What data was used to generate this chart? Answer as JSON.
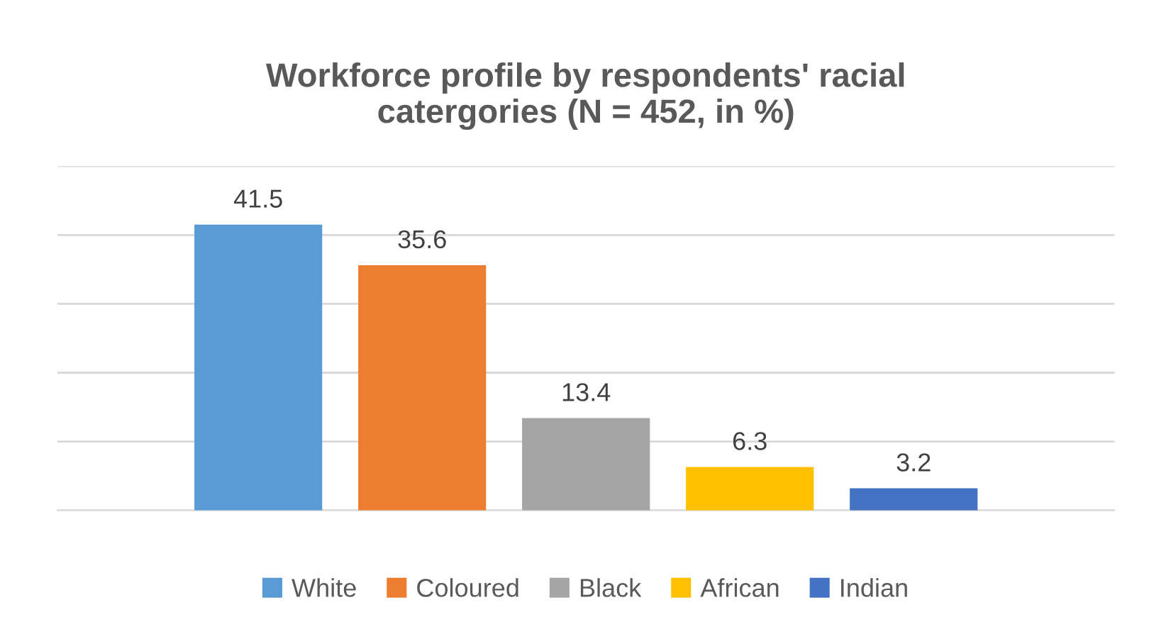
{
  "chart_data": {
    "type": "bar",
    "title": "Workforce profile by respondents' racial\ncatergories (N = 452, in %)",
    "categories": [
      null
    ],
    "series": [
      {
        "name": "White",
        "color": "#5b9bd5",
        "values": [
          41.5
        ]
      },
      {
        "name": "Coloured",
        "color": "#ed7d31",
        "values": [
          35.6
        ]
      },
      {
        "name": "Black",
        "color": "#a5a5a5",
        "values": [
          13.4
        ]
      },
      {
        "name": "African",
        "color": "#ffc000",
        "values": [
          6.3
        ]
      },
      {
        "name": "Indian",
        "color": "#4472c4",
        "values": [
          3.2
        ]
      }
    ],
    "ylim": [
      0,
      50
    ],
    "yticks": [
      {
        "value": 0,
        "label": null
      },
      {
        "value": 10,
        "label": null
      },
      {
        "value": 20,
        "label": null
      },
      {
        "value": 30,
        "label": null
      },
      {
        "value": 40,
        "label": null
      },
      {
        "value": 50,
        "label": null
      }
    ],
    "grid": "y",
    "data_labels": true,
    "legend": "bottom"
  }
}
